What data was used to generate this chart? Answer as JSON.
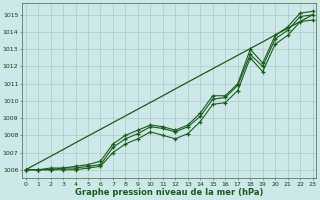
{
  "x": [
    0,
    1,
    2,
    3,
    4,
    5,
    6,
    7,
    8,
    9,
    10,
    11,
    12,
    13,
    14,
    15,
    16,
    17,
    18,
    19,
    20,
    21,
    22,
    23
  ],
  "line1": [
    1006.0,
    1006.0,
    1006.1,
    1006.1,
    1006.2,
    1006.3,
    1006.5,
    1007.5,
    1008.0,
    1008.3,
    1008.6,
    1008.5,
    1008.3,
    1008.6,
    1009.3,
    1010.3,
    1010.3,
    1011.0,
    1013.0,
    1012.2,
    1013.8,
    1014.3,
    1015.1,
    1015.2
  ],
  "line2": [
    1006.0,
    1006.0,
    1006.0,
    1006.0,
    1006.0,
    1006.1,
    1006.2,
    1007.0,
    1007.5,
    1007.8,
    1008.2,
    1008.0,
    1007.8,
    1008.1,
    1008.8,
    1009.8,
    1009.9,
    1010.6,
    1012.5,
    1011.7,
    1013.3,
    1013.8,
    1014.6,
    1014.7
  ],
  "line3": [
    1006.0,
    1006.0,
    1006.0,
    1006.1,
    1006.1,
    1006.2,
    1006.3,
    1007.3,
    1007.8,
    1008.1,
    1008.5,
    1008.4,
    1008.2,
    1008.5,
    1009.1,
    1010.1,
    1010.2,
    1010.9,
    1012.7,
    1012.0,
    1013.6,
    1014.1,
    1014.9,
    1015.0
  ],
  "line_straight": [
    1006.0,
    1006.39,
    1006.78,
    1007.17,
    1007.57,
    1007.96,
    1008.35,
    1008.74,
    1009.13,
    1009.52,
    1009.91,
    1010.3,
    1010.7,
    1011.09,
    1011.48,
    1011.87,
    1012.26,
    1012.65,
    1013.04,
    1013.43,
    1013.83,
    1014.22,
    1014.61,
    1015.0
  ],
  "bg_color": "#cce8e8",
  "grid_color": "#b0c8c8",
  "line_color": "#1a5c1a",
  "xlabel": "Graphe pression niveau de la mer (hPa)",
  "ylim": [
    1005.5,
    1015.7
  ],
  "yticks": [
    1006,
    1007,
    1008,
    1009,
    1010,
    1011,
    1012,
    1013,
    1014,
    1015
  ],
  "xticks": [
    0,
    1,
    2,
    3,
    4,
    5,
    6,
    7,
    8,
    9,
    10,
    11,
    12,
    13,
    14,
    15,
    16,
    17,
    18,
    19,
    20,
    21,
    22,
    23
  ],
  "xlim": [
    -0.3,
    23.3
  ]
}
